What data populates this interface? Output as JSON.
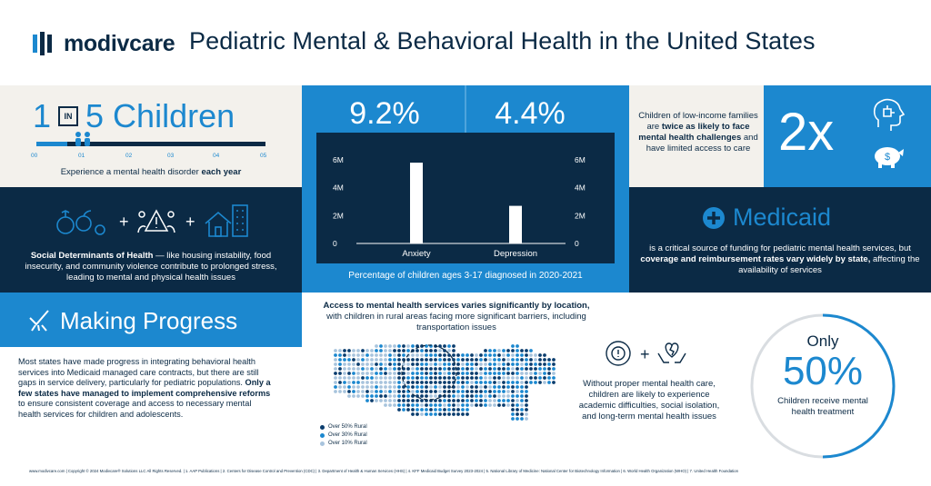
{
  "brand": {
    "logo_text": "modivcare"
  },
  "title": "Pediatric Mental & Behavioral Health in the United States",
  "one_in_five": {
    "one": "1",
    "in": "IN",
    "five_children": "5 Children",
    "scale": [
      "00",
      "01",
      "02",
      "03",
      "04",
      "05"
    ],
    "caption_pre": "Experience a mental health disorder ",
    "caption_bold": "each year"
  },
  "sdoh": {
    "bold": "Social Determinants of Health",
    "rest": " — like housing instability, food insecurity, and community violence contribute to prolonged stress, leading to mental and physical health issues"
  },
  "chart_data": {
    "type": "bar",
    "categories": [
      "Anxiety",
      "Depression"
    ],
    "values": [
      5800000,
      2700000
    ],
    "percent_labels": [
      "9.2%",
      "4.4%"
    ],
    "ytick_labels": [
      "6M",
      "4M",
      "2M",
      "0"
    ],
    "ylim": [
      0,
      6000000
    ],
    "caption": "Percentage of children ages 3-17 diagnosed in 2020-2021",
    "colors": {
      "panel": "#1c88cf",
      "bar": "#ffffff"
    }
  },
  "low_income": {
    "pre": "Children of low-income families are ",
    "bold": "twice as likely to face mental health challenges",
    "post": " and have limited access to care",
    "big": "2x"
  },
  "medicaid": {
    "title": "Medicaid",
    "pre": "is a critical source of funding for pediatric mental health services, but ",
    "bold": "coverage and reimbursement rates vary widely by state,",
    "post": " affecting the availability of services"
  },
  "progress": {
    "title": "Making Progress",
    "pre": "Most states have made progress in integrating behavioral health services into Medicaid managed care contracts, but there are still gaps in service delivery, particularly for pediatric populations. ",
    "bold": "Only a few states have managed to implement comprehensive reforms",
    "post": " to ensure consistent coverage and access to necessary mental health services for children and adolescents."
  },
  "access": {
    "bold": "Access to mental health services varies significantly by location,",
    "rest": " with children in rural areas facing more significant barriers, including transportation issues",
    "legend": [
      "Over 50% Rural",
      "Over 30% Rural",
      "Over 10% Rural"
    ],
    "legend_colors": [
      "#0b3d6e",
      "#1c88cf",
      "#a8c4dd"
    ]
  },
  "without_care": "Without proper mental health care, children are likely to experience academic difficulties, social isolation, and long-term mental health issues",
  "only50": {
    "only": "Only",
    "pct": "50%",
    "caption": "Children receive mental health treatment",
    "fraction": 0.5
  },
  "footer": "www.modivcare.com | Copyright © 2024 Modivcare® Solutions LLC All Rights Reserved. | 1. AAP Publications | 2. Centers for Disease Control and Prevention (CDC) | 3. Department of Health & Human Services (HHS) | 4. KFF Medicaid Budget Survey 2023-2024 | 5. National Library of Medicine: National Center for Biotechnology Information | 6. World Health Organization (WHO) | 7. United Health Foundation",
  "colors": {
    "navy": "#0b2a45",
    "blue": "#1c88cf",
    "cream": "#f3f1ec",
    "accent": "#2f7fc1"
  }
}
